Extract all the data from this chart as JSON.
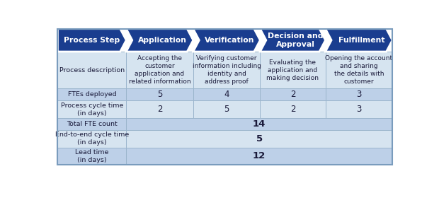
{
  "process_steps": [
    "Process Step",
    "Application",
    "Verification",
    "Decision and\nApproval",
    "Fulfillment"
  ],
  "row_labels": [
    "Process description",
    "FTEs deployed",
    "Process cycle time\n(in days)",
    "Total FTE count",
    "End-to-end cycle time\n(in days)",
    "Lead time\n(in days)"
  ],
  "desc_texts": [
    "Accepting the\ncustomer\napplication and\nrelated information",
    "Verifying customer\ninformation including\nidentity and\naddress proof",
    "Evaluating the\napplication and\nmaking decision",
    "Opening the account\nand sharing\nthe details with\ncustomer"
  ],
  "fte_vals": [
    "5",
    "4",
    "2",
    "3"
  ],
  "cycle_vals": [
    "2",
    "5",
    "2",
    "3"
  ],
  "merged_texts": [
    "14",
    "5",
    "12"
  ],
  "dark_blue": "#1A3D8F",
  "chevron_blue": "#1F4EA6",
  "light_row": "#D6E4F0",
  "dark_row": "#BDD0E8",
  "text_dark": "#1A1A3A",
  "border_color": "#9BB5CC",
  "white": "#FFFFFF"
}
